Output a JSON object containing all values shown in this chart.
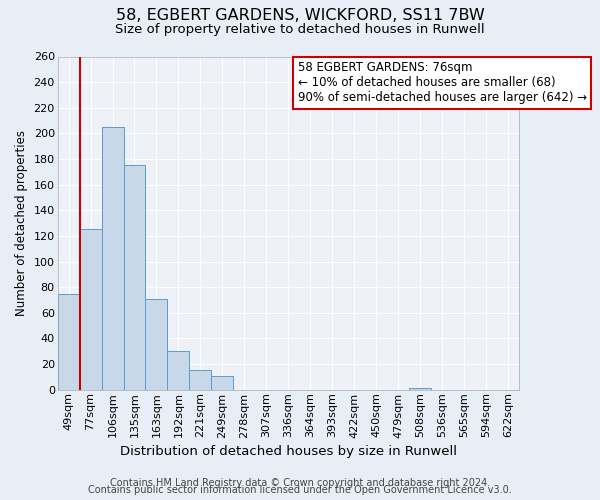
{
  "title1": "58, EGBERT GARDENS, WICKFORD, SS11 7BW",
  "title2": "Size of property relative to detached houses in Runwell",
  "xlabel": "Distribution of detached houses by size in Runwell",
  "ylabel": "Number of detached properties",
  "bin_labels": [
    "49sqm",
    "77sqm",
    "106sqm",
    "135sqm",
    "163sqm",
    "192sqm",
    "221sqm",
    "249sqm",
    "278sqm",
    "307sqm",
    "336sqm",
    "364sqm",
    "393sqm",
    "422sqm",
    "450sqm",
    "479sqm",
    "508sqm",
    "536sqm",
    "565sqm",
    "594sqm",
    "622sqm"
  ],
  "bar_heights": [
    75,
    125,
    205,
    175,
    71,
    30,
    15,
    11,
    0,
    0,
    0,
    0,
    0,
    0,
    0,
    0,
    1,
    0,
    0,
    0,
    0
  ],
  "bar_color": "#c8d8e8",
  "bar_edge_color": "#5b9bd5",
  "vline_color": "#cc0000",
  "annotation_line1": "58 EGBERT GARDENS: 76sqm",
  "annotation_line2": "← 10% of detached houses are smaller (68)",
  "annotation_line3": "90% of semi-detached houses are larger (642) →",
  "annotation_box_color": "#ffffff",
  "annotation_box_edge_color": "#cc0000",
  "ylim": [
    0,
    260
  ],
  "yticks": [
    0,
    20,
    40,
    60,
    80,
    100,
    120,
    140,
    160,
    180,
    200,
    220,
    240,
    260
  ],
  "footer1": "Contains HM Land Registry data © Crown copyright and database right 2024.",
  "footer2": "Contains public sector information licensed under the Open Government Licence v3.0.",
  "background_color": "#e8eef5",
  "plot_bg_color": "#eef2f8",
  "grid_color": "#ffffff",
  "title1_fontsize": 11.5,
  "title2_fontsize": 9.5,
  "xlabel_fontsize": 9.5,
  "ylabel_fontsize": 8.5,
  "tick_fontsize": 8,
  "annotation_fontsize": 8.5,
  "footer_fontsize": 7
}
